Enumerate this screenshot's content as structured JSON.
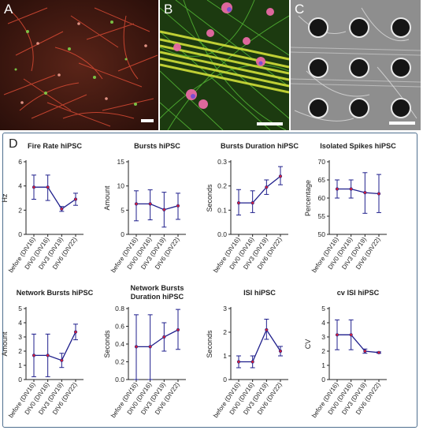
{
  "panels": [
    {
      "letter": "A"
    },
    {
      "letter": "B"
    },
    {
      "letter": "C"
    }
  ],
  "figure_label": "D",
  "colors": {
    "line": "#1f1f8c",
    "marker": "#d0203a",
    "frame": "#4f6f8f"
  },
  "chart_data": [
    {
      "type": "line",
      "title": "Fire Rate hiPSC",
      "ylabel": "Hz",
      "ylim": [
        0,
        6
      ],
      "yticks": [
        0,
        2,
        4,
        6
      ],
      "categories": [
        "before (DIV16)",
        "DIV0 (DIV16)",
        "DIV3 (DIV19)",
        "DIV6 (DIV22)"
      ],
      "values": [
        3.9,
        3.9,
        2.1,
        2.9
      ],
      "err_low": [
        2.9,
        2.8,
        1.9,
        2.4
      ],
      "err_high": [
        4.9,
        4.9,
        2.3,
        3.4
      ]
    },
    {
      "type": "line",
      "title": "Bursts hiPSC",
      "ylabel": "Amount",
      "ylim": [
        0,
        15
      ],
      "yticks": [
        0,
        5,
        10,
        15
      ],
      "categories": [
        "before (DIV16)",
        "DIV0 (DIV16)",
        "DIV3 (DIV19)",
        "DIV6 (DIV22)"
      ],
      "values": [
        6.3,
        6.3,
        5.1,
        5.9
      ],
      "err_low": [
        2.8,
        3.0,
        1.5,
        3.1
      ],
      "err_high": [
        9.0,
        9.2,
        8.7,
        8.5
      ]
    },
    {
      "type": "line",
      "title": "Bursts Duration hiPSC",
      "ylabel": "Seconds",
      "ylim": [
        0,
        0.3
      ],
      "yticks": [
        0.0,
        0.1,
        0.2,
        0.3
      ],
      "categories": [
        "before (DIV16)",
        "DIV0 (DIV16)",
        "DIV3 (DIV19)",
        "DIV6 (DIV22)"
      ],
      "values": [
        0.13,
        0.13,
        0.195,
        0.24
      ],
      "err_low": [
        0.08,
        0.09,
        0.165,
        0.205
      ],
      "err_high": [
        0.185,
        0.18,
        0.225,
        0.28
      ]
    },
    {
      "type": "line",
      "title": "Isolated Spikes hiPSC",
      "ylabel": "Percentage",
      "ylim": [
        50,
        70
      ],
      "yticks": [
        50,
        55,
        60,
        65,
        70
      ],
      "categories": [
        "before (DIV16)",
        "DIV0 (DIV16)",
        "DIV3 (DIV19)",
        "DIV6 (DIV22)"
      ],
      "values": [
        62.5,
        62.5,
        61.5,
        61.2
      ],
      "err_low": [
        60.0,
        60.0,
        55.8,
        56.0
      ],
      "err_high": [
        65.0,
        65.0,
        67.0,
        66.5
      ]
    },
    {
      "type": "line",
      "title": "Network Bursts hiPSC",
      "ylabel": "Amount",
      "ylim": [
        0,
        5
      ],
      "yticks": [
        0,
        1,
        2,
        3,
        4,
        5
      ],
      "categories": [
        "before (DIV16)",
        "DIV0 (DIV16)",
        "DIV3 (DIV19)",
        "DIV6 (DIV22)"
      ],
      "values": [
        1.7,
        1.7,
        1.35,
        3.35
      ],
      "err_low": [
        0.2,
        0.2,
        0.85,
        2.8
      ],
      "err_high": [
        3.2,
        3.2,
        1.85,
        3.9
      ]
    },
    {
      "type": "line",
      "title": "Network Bursts Duration hiPSC",
      "title_lines": [
        "Network Bursts",
        "Duration hiPSC"
      ],
      "ylabel": "Seconds",
      "ylim": [
        0,
        0.8
      ],
      "yticks": [
        0.0,
        0.2,
        0.4,
        0.6,
        0.8
      ],
      "categories": [
        "before (DIV16)",
        "DIV0 (DIV16)",
        "DIV3 (DIV19)",
        "DIV6 (DIV22)"
      ],
      "values": [
        0.37,
        0.37,
        0.48,
        0.56
      ],
      "err_low": [
        0.0,
        0.0,
        0.32,
        0.34
      ],
      "err_high": [
        0.73,
        0.73,
        0.64,
        0.79
      ]
    },
    {
      "type": "line",
      "title": "ISI hiPSC",
      "ylabel": "Seconds",
      "ylim": [
        0,
        3
      ],
      "yticks": [
        0,
        1,
        2,
        3
      ],
      "categories": [
        "before (DIV16)",
        "DIV0 (DIV16)",
        "DIV3 (DIV19)",
        "DIV6 (DIV22)"
      ],
      "values": [
        0.75,
        0.75,
        2.1,
        1.2
      ],
      "err_low": [
        0.5,
        0.5,
        1.7,
        1.0
      ],
      "err_high": [
        1.0,
        1.0,
        2.55,
        1.4
      ]
    },
    {
      "type": "line",
      "title": "cv ISI hiPSC",
      "ylabel": "CV",
      "ylim": [
        0,
        5
      ],
      "yticks": [
        0,
        1,
        2,
        3,
        4,
        5
      ],
      "categories": [
        "before (DIV16)",
        "DIV0 (DIV16)",
        "DIV3 (DIV19)",
        "DIV6 (DIV22)"
      ],
      "values": [
        3.15,
        3.15,
        2.0,
        1.9
      ],
      "err_low": [
        2.1,
        2.1,
        1.85,
        1.85
      ],
      "err_high": [
        4.2,
        4.2,
        2.15,
        1.95
      ]
    }
  ]
}
